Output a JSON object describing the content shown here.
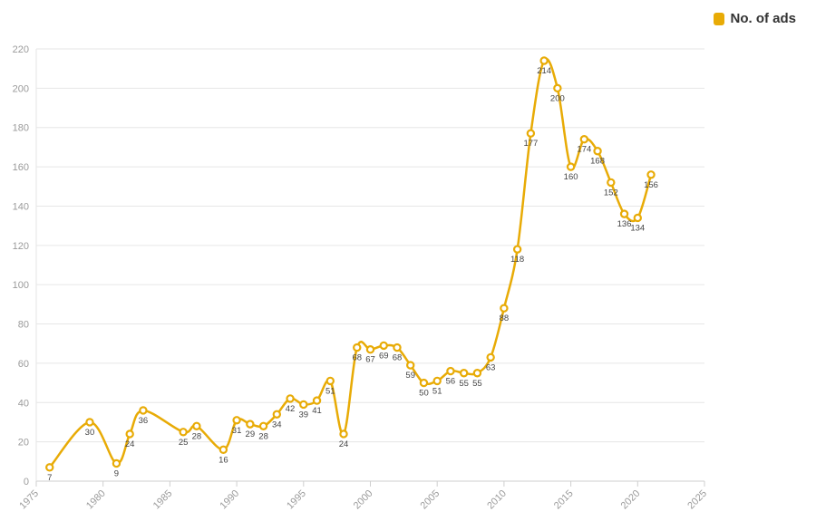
{
  "legend": {
    "label": "No. of ads",
    "color": "#e8ab06"
  },
  "chart_data": {
    "type": "line",
    "title": "",
    "xlabel": "",
    "ylabel": "",
    "xlim": [
      1975,
      2025
    ],
    "ylim": [
      0,
      220
    ],
    "x_ticks": [
      1975,
      1980,
      1985,
      1990,
      1995,
      2000,
      2005,
      2010,
      2015,
      2020,
      2025
    ],
    "y_ticks": [
      0,
      20,
      40,
      60,
      80,
      100,
      120,
      140,
      160,
      180,
      200,
      220
    ],
    "grid": true,
    "legend_position": "top-right",
    "series": [
      {
        "name": "No. of ads",
        "color": "#e8ab06",
        "x": [
          1976,
          1979,
          1981,
          1982,
          1983,
          1986,
          1987,
          1989,
          1990,
          1991,
          1992,
          1993,
          1994,
          1995,
          1996,
          1997,
          1998,
          1999,
          2000,
          2001,
          2002,
          2003,
          2004,
          2005,
          2006,
          2007,
          2008,
          2009,
          2010,
          2011,
          2012,
          2013,
          2014,
          2015,
          2016,
          2017,
          2018,
          2019,
          2020,
          2021
        ],
        "y": [
          7,
          30,
          9,
          24,
          36,
          25,
          28,
          16,
          31,
          29,
          28,
          34,
          42,
          39,
          41,
          51,
          24,
          68,
          67,
          69,
          68,
          59,
          50,
          51,
          56,
          55,
          55,
          63,
          88,
          118,
          177,
          214,
          200,
          160,
          174,
          168,
          152,
          136,
          134,
          156
        ]
      }
    ]
  }
}
